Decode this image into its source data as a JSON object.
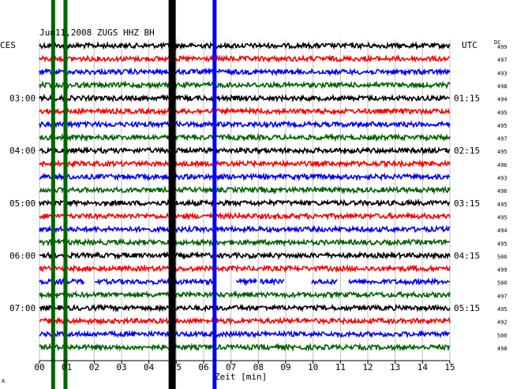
{
  "chart_data": {
    "type": "line",
    "title": "Jun11,2008   ZUGS HHZ BH",
    "xlabel": "Zeit [min]",
    "xlim": [
      0,
      15
    ],
    "x_ticks": [
      "00",
      "01",
      "02",
      "03",
      "04",
      "05",
      "06",
      "07",
      "08",
      "09",
      "10",
      "11",
      "12",
      "13",
      "14",
      "15"
    ],
    "left_axis_label": "CES",
    "right_axis_label": "UTC",
    "dc_header": "DC",
    "left_time_labels": [
      {
        "row": 4,
        "label": "03:00"
      },
      {
        "row": 8,
        "label": "04:00"
      },
      {
        "row": 12,
        "label": "05:00"
      },
      {
        "row": 16,
        "label": "06:00"
      },
      {
        "row": 20,
        "label": "07:00"
      }
    ],
    "right_time_labels": [
      {
        "row": 4,
        "label": "01:15"
      },
      {
        "row": 8,
        "label": "02:15"
      },
      {
        "row": 12,
        "label": "03:15"
      },
      {
        "row": 16,
        "label": "04:15"
      },
      {
        "row": 20,
        "label": "05:15"
      }
    ],
    "trace_colors": [
      "#000000",
      "#ff0000",
      "#0000ff",
      "#006400"
    ],
    "dc_values": [
      499,
      497,
      493,
      498,
      494,
      495,
      495,
      497,
      495,
      496,
      493,
      496,
      495,
      495,
      494,
      495,
      500,
      499,
      500,
      497,
      495,
      492,
      500,
      498
    ],
    "gaps": [
      {
        "row": 18,
        "from_min": 1.65,
        "to_min": 2.0
      },
      {
        "row": 18,
        "from_min": 6.35,
        "to_min": 7.2
      },
      {
        "row": 18,
        "from_min": 7.95,
        "to_min": 8.05
      },
      {
        "row": 18,
        "from_min": 8.95,
        "to_min": 9.95
      },
      {
        "row": 18,
        "from_min": 10.9,
        "to_min": 11.3
      }
    ],
    "event_markers": [
      {
        "minute": 0.5,
        "color": "#006400"
      },
      {
        "minute": 0.95,
        "color": "#006400"
      },
      {
        "minute": 4.85,
        "color": "#000000"
      },
      {
        "minute": 6.4,
        "color": "#0000ff"
      }
    ],
    "grid": true
  },
  "footer_mark": "A"
}
